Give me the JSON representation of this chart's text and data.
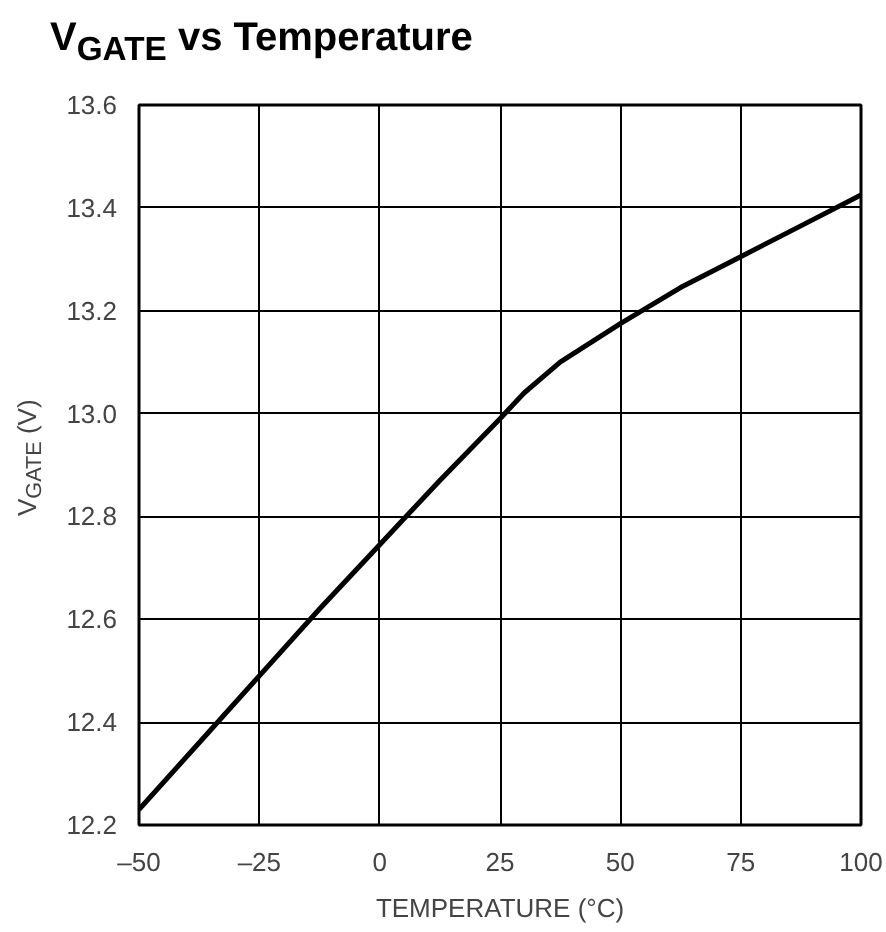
{
  "chart_data": {
    "type": "line",
    "title": "V$_{GATE}$ vs Temperature",
    "xlabel": "TEMPERATURE (°C)",
    "ylabel": "V$_{GATE}$ (V)",
    "x": [
      -50,
      -37.5,
      -25,
      -12.5,
      0,
      12.5,
      25,
      30,
      37.5,
      50,
      62.5,
      75,
      87.5,
      100
    ],
    "series": [
      {
        "color": "#000000",
        "values": [
          12.23,
          12.36,
          12.49,
          12.62,
          12.745,
          12.87,
          12.99,
          13.04,
          13.1,
          13.175,
          13.245,
          13.305,
          13.365,
          13.425
        ]
      }
    ],
    "xlim": [
      -50,
      100
    ],
    "ylim": [
      12.2,
      13.6
    ],
    "xticks": [
      {
        "value": -50,
        "label": "–50"
      },
      {
        "value": -25,
        "label": "–25"
      },
      0,
      25,
      50,
      75,
      100
    ],
    "yticks": [
      {
        "value": 12.2,
        "label": "12.2"
      },
      {
        "value": 12.4,
        "label": "12.4"
      },
      {
        "value": 12.6,
        "label": "12.6"
      },
      {
        "value": 12.8,
        "label": "12.8"
      },
      {
        "value": 13.0,
        "label": "13.0"
      },
      {
        "value": 13.2,
        "label": "13.2"
      },
      {
        "value": 13.4,
        "label": "13.4"
      },
      {
        "value": 13.6,
        "label": "13.6"
      }
    ],
    "grid": true,
    "marker": "none",
    "line_style": "solid"
  }
}
